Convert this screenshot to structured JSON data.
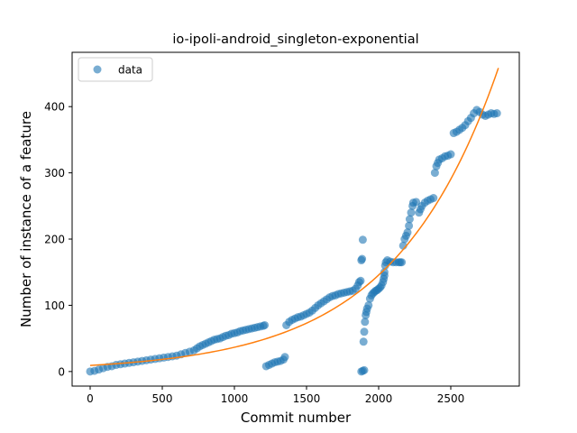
{
  "chart_data": {
    "type": "scatter",
    "title": "io-ipoli-android_singleton-exponential",
    "xlabel": "Commit number",
    "ylabel": "Number of instance of a feature",
    "xlim": [
      -125,
      2975
    ],
    "ylim": [
      -22,
      482
    ],
    "xticks": [
      0,
      500,
      1000,
      1500,
      2000,
      2500
    ],
    "yticks": [
      0,
      100,
      200,
      300,
      400
    ],
    "grid": false,
    "legend": {
      "placement": "top-left",
      "entries": [
        "data"
      ]
    },
    "colors": {
      "data": "#1f77b4",
      "fit": "#ff7f0e"
    },
    "series": [
      {
        "name": "data",
        "kind": "scatter",
        "points": [
          [
            0,
            0
          ],
          [
            30,
            1
          ],
          [
            60,
            3
          ],
          [
            90,
            5
          ],
          [
            120,
            7
          ],
          [
            150,
            8
          ],
          [
            180,
            10
          ],
          [
            210,
            11
          ],
          [
            240,
            12
          ],
          [
            270,
            13
          ],
          [
            300,
            14
          ],
          [
            330,
            15
          ],
          [
            360,
            16
          ],
          [
            390,
            17
          ],
          [
            420,
            18
          ],
          [
            450,
            19
          ],
          [
            480,
            20
          ],
          [
            510,
            21
          ],
          [
            540,
            22
          ],
          [
            570,
            23
          ],
          [
            600,
            24
          ],
          [
            630,
            26
          ],
          [
            660,
            28
          ],
          [
            690,
            30
          ],
          [
            720,
            32
          ],
          [
            740,
            35
          ],
          [
            760,
            38
          ],
          [
            780,
            40
          ],
          [
            800,
            42
          ],
          [
            820,
            44
          ],
          [
            840,
            46
          ],
          [
            860,
            48
          ],
          [
            880,
            49
          ],
          [
            900,
            50
          ],
          [
            920,
            52
          ],
          [
            940,
            54
          ],
          [
            960,
            55
          ],
          [
            980,
            57
          ],
          [
            1000,
            58
          ],
          [
            1020,
            59
          ],
          [
            1040,
            61
          ],
          [
            1060,
            62
          ],
          [
            1080,
            63
          ],
          [
            1100,
            64
          ],
          [
            1120,
            65
          ],
          [
            1140,
            66
          ],
          [
            1160,
            67
          ],
          [
            1180,
            68
          ],
          [
            1200,
            69
          ],
          [
            1210,
            70
          ],
          [
            1220,
            8
          ],
          [
            1240,
            10
          ],
          [
            1260,
            12
          ],
          [
            1280,
            14
          ],
          [
            1300,
            15
          ],
          [
            1320,
            16
          ],
          [
            1340,
            18
          ],
          [
            1350,
            22
          ],
          [
            1360,
            70
          ],
          [
            1380,
            75
          ],
          [
            1400,
            78
          ],
          [
            1420,
            80
          ],
          [
            1440,
            82
          ],
          [
            1460,
            83
          ],
          [
            1480,
            85
          ],
          [
            1500,
            87
          ],
          [
            1520,
            89
          ],
          [
            1540,
            92
          ],
          [
            1560,
            96
          ],
          [
            1580,
            100
          ],
          [
            1600,
            103
          ],
          [
            1620,
            106
          ],
          [
            1640,
            109
          ],
          [
            1660,
            112
          ],
          [
            1680,
            114
          ],
          [
            1700,
            115
          ],
          [
            1720,
            117
          ],
          [
            1740,
            118
          ],
          [
            1760,
            119
          ],
          [
            1780,
            120
          ],
          [
            1800,
            121
          ],
          [
            1820,
            122
          ],
          [
            1840,
            125
          ],
          [
            1855,
            130
          ],
          [
            1865,
            135
          ],
          [
            1875,
            137
          ],
          [
            1880,
            168
          ],
          [
            1885,
            170
          ],
          [
            1890,
            199
          ],
          [
            1880,
            0
          ],
          [
            1890,
            1
          ],
          [
            1900,
            2
          ],
          [
            1895,
            45
          ],
          [
            1900,
            60
          ],
          [
            1905,
            75
          ],
          [
            1910,
            85
          ],
          [
            1915,
            90
          ],
          [
            1920,
            95
          ],
          [
            1930,
            100
          ],
          [
            1940,
            110
          ],
          [
            1950,
            115
          ],
          [
            1960,
            118
          ],
          [
            1970,
            120
          ],
          [
            1980,
            122
          ],
          [
            1990,
            123
          ],
          [
            2000,
            125
          ],
          [
            2010,
            127
          ],
          [
            2020,
            130
          ],
          [
            2030,
            135
          ],
          [
            2035,
            140
          ],
          [
            2040,
            150
          ],
          [
            2045,
            160
          ],
          [
            2050,
            165
          ],
          [
            2060,
            168
          ],
          [
            2080,
            166
          ],
          [
            2100,
            165
          ],
          [
            2120,
            165
          ],
          [
            2140,
            165
          ],
          [
            2150,
            165
          ],
          [
            2160,
            165
          ],
          [
            2040,
            145
          ],
          [
            2170,
            190
          ],
          [
            2180,
            200
          ],
          [
            2190,
            205
          ],
          [
            2200,
            210
          ],
          [
            2210,
            220
          ],
          [
            2215,
            230
          ],
          [
            2225,
            240
          ],
          [
            2235,
            250
          ],
          [
            2240,
            255
          ],
          [
            2260,
            256
          ],
          [
            2280,
            240
          ],
          [
            2290,
            245
          ],
          [
            2300,
            250
          ],
          [
            2320,
            255
          ],
          [
            2340,
            258
          ],
          [
            2360,
            260
          ],
          [
            2380,
            262
          ],
          [
            2390,
            300
          ],
          [
            2400,
            310
          ],
          [
            2410,
            315
          ],
          [
            2420,
            320
          ],
          [
            2440,
            322
          ],
          [
            2460,
            325
          ],
          [
            2480,
            326
          ],
          [
            2500,
            328
          ],
          [
            2520,
            360
          ],
          [
            2540,
            362
          ],
          [
            2560,
            365
          ],
          [
            2580,
            368
          ],
          [
            2600,
            372
          ],
          [
            2620,
            378
          ],
          [
            2640,
            383
          ],
          [
            2660,
            390
          ],
          [
            2680,
            395
          ],
          [
            2700,
            392
          ],
          [
            2720,
            388
          ],
          [
            2740,
            386
          ],
          [
            2760,
            388
          ],
          [
            2780,
            390
          ],
          [
            2800,
            389
          ],
          [
            2820,
            390
          ]
        ]
      },
      {
        "name": "",
        "kind": "line",
        "model": "exponential",
        "a": 9.2,
        "b": 0.001381,
        "x_range": [
          0,
          2830
        ]
      }
    ]
  }
}
